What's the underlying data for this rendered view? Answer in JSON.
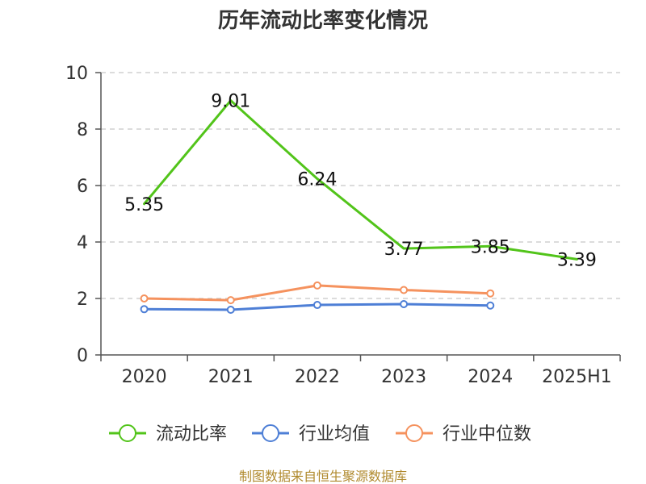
{
  "chart_data": {
    "type": "line",
    "title": "历年流动比率变化情况",
    "categories": [
      "2020",
      "2021",
      "2022",
      "2023",
      "2024",
      "2025H1"
    ],
    "ylim": [
      0,
      10
    ],
    "yticks": [
      0,
      2,
      4,
      6,
      8,
      10
    ],
    "grid": true,
    "legend_position": "bottom",
    "series": [
      {
        "name": "流动比率",
        "color": "#52c41a",
        "values": [
          5.35,
          9.01,
          6.24,
          3.77,
          3.85,
          3.39
        ],
        "labels": [
          "5.35",
          "9.01",
          "6.24",
          "3.77",
          "3.85",
          "3.39"
        ],
        "show_labels": true,
        "show_markers": false
      },
      {
        "name": "行业均值",
        "color": "#4e7fd6",
        "values": [
          1.62,
          1.6,
          1.77,
          1.8,
          1.75,
          null
        ],
        "show_labels": false,
        "show_markers": true
      },
      {
        "name": "行业中位数",
        "color": "#f5925e",
        "values": [
          2.0,
          1.94,
          2.46,
          2.3,
          2.18,
          null
        ],
        "show_labels": false,
        "show_markers": true
      }
    ]
  },
  "footer": {
    "source_text": "制图数据来自恒生聚源数据库"
  }
}
